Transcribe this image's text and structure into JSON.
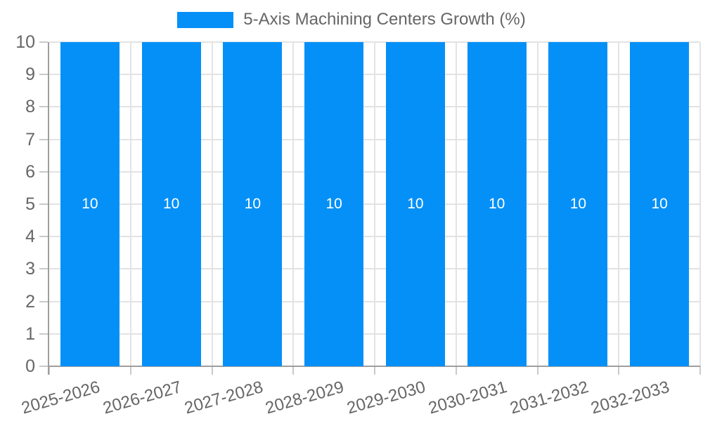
{
  "colors": {
    "bar": "#0590f8",
    "grid": "#e3e3e3",
    "axis": "#9e9e9e",
    "tick_mark": "#c9c9c9",
    "text": "#666666",
    "legend_text": "#666666",
    "value_text": "#ffffff",
    "background": "#ffffff"
  },
  "chart_data": {
    "type": "bar",
    "title": "",
    "categories": [
      "2025-2026",
      "2026-2027",
      "2027-2028",
      "2028-2029",
      "2029-2030",
      "2030-2031",
      "2031-2032",
      "2032-2033"
    ],
    "series": [
      {
        "name": "5-Axis Machining Centers Growth (%)",
        "values": [
          10,
          10,
          10,
          10,
          10,
          10,
          10,
          10
        ]
      }
    ],
    "value_labels": [
      "10",
      "10",
      "10",
      "10",
      "10",
      "10",
      "10",
      "10"
    ],
    "xlabel": "",
    "ylabel": "",
    "ylim": [
      0,
      10
    ],
    "yticks": [
      0,
      1,
      2,
      3,
      4,
      5,
      6,
      7,
      8,
      9,
      10
    ],
    "grid": true,
    "legend_position": "top",
    "x_label_rotation_deg": -16
  }
}
